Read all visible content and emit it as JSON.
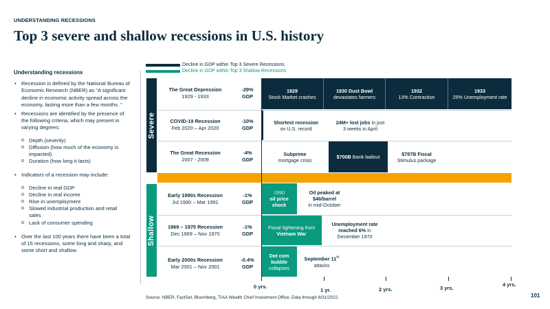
{
  "header": {
    "kicker": "UNDERSTANDING RECESSIONS",
    "title": "Top 3 severe and shallow recessions in U.S. history"
  },
  "sidebar": {
    "heading": "Understanding recessions",
    "bullet1": "Recession is defined by the National Bureau of Economic Research (NBER) as “A significant decline in economic activity spread across the economy, lasting more than a few months. ”",
    "bullet2": "Recessions are identified by the presence of the following criteria, which may present in varying degrees:",
    "criteria": [
      "Depth (severity)",
      "Diffusion (how much of the economy is impacted)",
      "Duration (how long it lasts)"
    ],
    "bullet3": "Indicators of a recession may include:",
    "indicators": [
      "Decline in real GDP",
      "Decline in real income",
      "Rise in unemployment",
      "Slowed industrial production and retail sales",
      "Lack of consumer spending"
    ],
    "bullet4": "Over the last 100 years there have been a total of 15 recessions, some long and sharp, and some short and shallow."
  },
  "legend": {
    "severe": "Decline in GDP within Top 3 Severe Recessions",
    "shallow": "Decline in GDP within Top 3 Shallow Recessions"
  },
  "colors": {
    "severe": "#0b2c3d",
    "shallow": "#0a9b7e",
    "band": "#f5a300"
  },
  "groups": {
    "severe": "Severe",
    "shallow": "Shallow"
  },
  "recessions": [
    {
      "name": "The Great Depression",
      "dates": "1929 - 1933",
      "gdp": "-29%",
      "gdp_unit": "GDP",
      "duration_years": 4.0,
      "events": [
        {
          "bold": "1929",
          "text": "Stock Market crashes"
        },
        {
          "bold": "1930 Dust Bowl",
          "text": "devastates farmers"
        },
        {
          "bold": "1932",
          "text": "13% Contraction"
        },
        {
          "bold": "1933",
          "text": "25% Unemployment rate"
        }
      ]
    },
    {
      "name": "COVID-19 Recession",
      "dates": "Feb 2020 – Apr 2020",
      "gdp": "-10%",
      "gdp_unit": "GDP",
      "duration_years": 0.0,
      "events": [
        {
          "bold": "Shortest recession",
          "text": "on U.S. record"
        },
        {
          "bold": "24M+ lost jobs",
          "text_after": " in just",
          "text": "3 weeks in April"
        }
      ]
    },
    {
      "name": "The Great Recession",
      "dates": "2007 - 2009",
      "gdp": "-4%",
      "gdp_unit": "GDP",
      "duration_years": 1.5,
      "events": [
        {
          "bold": "Subprime",
          "text": "mortgage crisis"
        },
        {
          "bold": "$700B",
          "text_after": " Bank bailout"
        },
        {
          "bold": "$787B Fiscal",
          "text": "Stimulus package"
        }
      ]
    },
    {
      "name": "Early 1990s Recession",
      "dates": "Jul 1990 – Mar 1991",
      "gdp": "-1%",
      "gdp_unit": "GDP",
      "duration_years": 0.7,
      "events": [
        {
          "bold": "",
          "text": "1990",
          "text2": "oil price",
          "text3": "shock"
        },
        {
          "bold": "Oil peaked at",
          "bold2": "$46/barrel",
          "text": "in mid-October"
        }
      ]
    },
    {
      "name": "1969 – 1970 Recession",
      "dates": "Dec 1969 – Nov 1970",
      "gdp": "-1%",
      "gdp_unit": "GDP",
      "duration_years": 0.9,
      "events": [
        {
          "text": "Fiscal tightening from",
          "bold": "Vietnam War"
        },
        {
          "bold": "Unemployment rate",
          "bold2": "reached 6%",
          "text_after": " in",
          "text": "December 1970"
        }
      ]
    },
    {
      "name": "Early 2000s Recession",
      "dates": "Mar 2001 – Nov 2001",
      "gdp": "-0.4%",
      "gdp_unit": "GDP",
      "duration_years": 0.7,
      "events": [
        {
          "bold": "Dot com",
          "bold2": "bubble",
          "text": "collapses"
        },
        {
          "bold": "September 11",
          "sup": "th",
          "text": "attacks"
        }
      ]
    }
  ],
  "axis": {
    "ticks": [
      "0 yrs.",
      "1 yr.",
      "2 yrs.",
      "3 yrs.",
      "4 yrs."
    ]
  },
  "footer": {
    "source": "Source: NBER, FactSet, Bloomberg, TIAA Wealth Chief Investment Office. Data through 8/31/2022.",
    "page": "101"
  }
}
